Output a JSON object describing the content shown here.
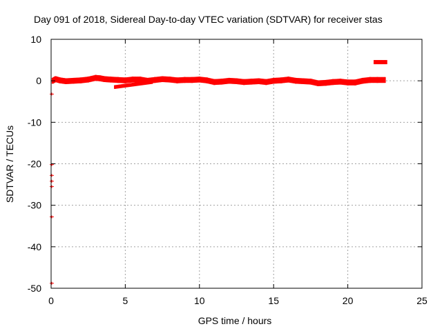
{
  "chart_data": {
    "type": "scatter",
    "title": "Day 091 of 2018, Sidereal Day-to-day VTEC variation (SDTVAR) for receiver stas",
    "xlabel": "GPS time / hours",
    "ylabel": "SDTVAR / TECUs",
    "xlim": [
      0,
      25
    ],
    "ylim": [
      -50,
      10
    ],
    "xticks": [
      "0",
      "5",
      "10",
      "15",
      "20",
      "25"
    ],
    "yticks": [
      "10",
      "0",
      "-10",
      "-20",
      "-30",
      "-40",
      "-50"
    ],
    "grid": true,
    "series": [
      {
        "name": "SDTVAR",
        "color": "#ff0000",
        "band_x": [
          0.1,
          0.3,
          0.6,
          1.0,
          1.5,
          2.0,
          2.5,
          3.0,
          3.3,
          3.6,
          4.0,
          4.5,
          5.0,
          5.5,
          6.0,
          6.5,
          7.0,
          7.5,
          8.0,
          8.5,
          9.0,
          9.5,
          10.0,
          10.5,
          11.0,
          11.5,
          12.0,
          12.5,
          13.0,
          13.5,
          14.0,
          14.5,
          15.0,
          15.5,
          16.0,
          16.5,
          17.0,
          17.5,
          18.0,
          18.5,
          19.0,
          19.5,
          20.0,
          20.5,
          21.0,
          21.5,
          22.0,
          22.5
        ],
        "band_y": [
          0.0,
          0.4,
          0.1,
          -0.1,
          0.0,
          0.1,
          0.3,
          0.7,
          0.6,
          0.4,
          0.3,
          0.2,
          0.1,
          0.3,
          0.3,
          0.0,
          0.2,
          0.4,
          0.3,
          0.1,
          0.2,
          0.2,
          0.3,
          0.1,
          -0.3,
          -0.2,
          0.0,
          -0.1,
          -0.3,
          -0.2,
          -0.1,
          -0.3,
          0.0,
          0.1,
          0.3,
          0.0,
          -0.1,
          -0.2,
          -0.6,
          -0.5,
          -0.3,
          -0.2,
          -0.4,
          -0.4,
          0.0,
          0.2,
          0.2,
          0.2
        ],
        "band_halfwidth": 0.7,
        "lower_branch": {
          "x": [
            4.3,
            6.8
          ],
          "y": [
            -1.5,
            -0.3
          ]
        },
        "upper_cluster": {
          "x": [
            21.8,
            22.6
          ],
          "y": [
            4.5,
            4.5
          ]
        },
        "outliers": [
          {
            "x": 0.0,
            "y": -3.2
          },
          {
            "x": 0.0,
            "y": -20.2
          },
          {
            "x": 0.0,
            "y": -22.8
          },
          {
            "x": 0.0,
            "y": -24.2
          },
          {
            "x": 0.0,
            "y": -25.5
          },
          {
            "x": 0.0,
            "y": -32.8
          },
          {
            "x": 0.0,
            "y": -48.8
          }
        ]
      }
    ]
  }
}
